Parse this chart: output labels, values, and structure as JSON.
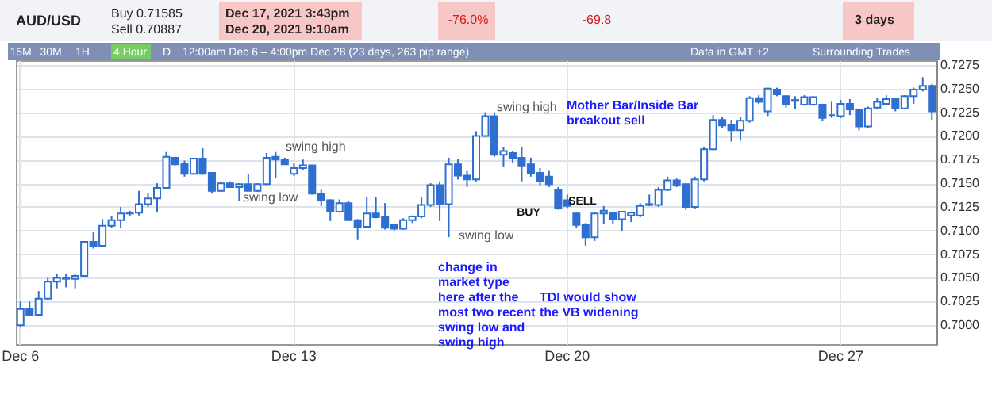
{
  "chart_data": {
    "type": "candlestick",
    "title": "AUD/USD",
    "categories": [
      "Dec 6",
      null,
      null,
      null,
      null,
      null,
      null,
      null,
      null,
      null,
      null,
      null,
      null,
      null,
      null,
      null,
      null,
      null,
      null,
      null,
      null,
      null,
      null,
      null,
      null,
      null,
      null,
      null,
      null,
      null,
      "Dec 13",
      null,
      null,
      null,
      null,
      null,
      null,
      null,
      null,
      null,
      null,
      null,
      null,
      null,
      null,
      null,
      null,
      null,
      null,
      null,
      null,
      null,
      null,
      null,
      null,
      null,
      null,
      null,
      null,
      null,
      "Dec 20",
      null,
      null,
      null,
      null,
      null,
      null,
      null,
      null,
      null,
      null,
      null,
      null,
      null,
      null,
      null,
      null,
      null,
      null,
      null,
      null,
      null,
      null,
      null,
      null,
      null,
      null,
      null,
      null,
      null,
      "Dec 27",
      null,
      null,
      null,
      null,
      null,
      null,
      null,
      null,
      null,
      null
    ],
    "ohlc": [
      [
        0.7,
        0.7025,
        0.6998,
        0.7017
      ],
      [
        0.7017,
        0.7025,
        0.7011,
        0.7011
      ],
      [
        0.7011,
        0.7036,
        0.701,
        0.7028
      ],
      [
        0.7028,
        0.705,
        0.7027,
        0.7046
      ],
      [
        0.7046,
        0.7054,
        0.7039,
        0.705
      ],
      [
        0.705,
        0.7054,
        0.704,
        0.7049
      ],
      [
        0.7049,
        0.7054,
        0.7039,
        0.7052
      ],
      [
        0.7052,
        0.7089,
        0.7051,
        0.7088
      ],
      [
        0.7088,
        0.7098,
        0.7081,
        0.7084
      ],
      [
        0.7084,
        0.7112,
        0.7083,
        0.7105
      ],
      [
        0.7105,
        0.7115,
        0.7103,
        0.7111
      ],
      [
        0.7111,
        0.7125,
        0.7103,
        0.7118
      ],
      [
        0.7118,
        0.7121,
        0.7115,
        0.7119
      ],
      [
        0.7119,
        0.7142,
        0.7116,
        0.7128
      ],
      [
        0.7128,
        0.714,
        0.7125,
        0.7134
      ],
      [
        0.7134,
        0.715,
        0.7119,
        0.7145
      ],
      [
        0.7145,
        0.7183,
        0.7144,
        0.7178
      ],
      [
        0.7177,
        0.7178,
        0.7169,
        0.717
      ],
      [
        0.7171,
        0.7174,
        0.7157,
        0.716
      ],
      [
        0.716,
        0.7176,
        0.7159,
        0.7176
      ],
      [
        0.7176,
        0.7187,
        0.7159,
        0.716
      ],
      [
        0.7161,
        0.7161,
        0.7139,
        0.7142
      ],
      [
        0.7142,
        0.7152,
        0.7141,
        0.715
      ],
      [
        0.715,
        0.7152,
        0.7145,
        0.7146
      ],
      [
        0.7146,
        0.715,
        0.7131,
        0.7149
      ],
      [
        0.7149,
        0.716,
        0.7142,
        0.7142
      ],
      [
        0.7142,
        0.715,
        0.7141,
        0.7149
      ],
      [
        0.7149,
        0.7182,
        0.7148,
        0.7177
      ],
      [
        0.7178,
        0.7183,
        0.7156,
        0.7175
      ],
      [
        0.7175,
        0.7177,
        0.717,
        0.717
      ],
      [
        0.716,
        0.7171,
        0.7158,
        0.7166
      ],
      [
        0.7166,
        0.7175,
        0.7164,
        0.7169
      ],
      [
        0.7169,
        0.7169,
        0.7138,
        0.7139
      ],
      [
        0.7139,
        0.7143,
        0.7126,
        0.7132
      ],
      [
        0.7132,
        0.7133,
        0.711,
        0.712
      ],
      [
        0.712,
        0.7133,
        0.7119,
        0.7129
      ],
      [
        0.7129,
        0.7131,
        0.711,
        0.7111
      ],
      [
        0.7111,
        0.7112,
        0.709,
        0.7104
      ],
      [
        0.7104,
        0.7135,
        0.7103,
        0.7118
      ],
      [
        0.7118,
        0.7135,
        0.7113,
        0.7114
      ],
      [
        0.7114,
        0.7129,
        0.7101,
        0.7103
      ],
      [
        0.7106,
        0.7107,
        0.71,
        0.7102
      ],
      [
        0.7102,
        0.7113,
        0.7101,
        0.7111
      ],
      [
        0.7111,
        0.7116,
        0.7108,
        0.7115
      ],
      [
        0.7115,
        0.7135,
        0.7113,
        0.7127
      ],
      [
        0.7127,
        0.715,
        0.7125,
        0.7148
      ],
      [
        0.7148,
        0.7152,
        0.711,
        0.7128
      ],
      [
        0.7128,
        0.7177,
        0.7093,
        0.717
      ],
      [
        0.717,
        0.7176,
        0.7154,
        0.7158
      ],
      [
        0.7158,
        0.7163,
        0.7146,
        0.7154
      ],
      [
        0.7154,
        0.7205,
        0.7152,
        0.72
      ],
      [
        0.72,
        0.7225,
        0.7199,
        0.7221
      ],
      [
        0.7221,
        0.7225,
        0.7178,
        0.718
      ],
      [
        0.718,
        0.7188,
        0.7167,
        0.7184
      ],
      [
        0.7182,
        0.7184,
        0.7172,
        0.7177
      ],
      [
        0.7177,
        0.7188,
        0.7152,
        0.7168
      ],
      [
        0.717,
        0.7177,
        0.7157,
        0.7161
      ],
      [
        0.7161,
        0.7166,
        0.7148,
        0.7152
      ],
      [
        0.7157,
        0.7163,
        0.7146,
        0.7149
      ],
      [
        0.7143,
        0.7146,
        0.7122,
        0.7124
      ],
      [
        0.7132,
        0.7138,
        0.7124,
        0.7126
      ],
      [
        0.7118,
        0.7119,
        0.7103,
        0.7106
      ],
      [
        0.7106,
        0.7108,
        0.7084,
        0.7093
      ],
      [
        0.7093,
        0.712,
        0.7089,
        0.7118
      ],
      [
        0.7118,
        0.7126,
        0.7107,
        0.7121
      ],
      [
        0.7119,
        0.712,
        0.7107,
        0.7112
      ],
      [
        0.7112,
        0.712,
        0.7099,
        0.712
      ],
      [
        0.7116,
        0.712,
        0.7109,
        0.7119
      ],
      [
        0.7116,
        0.7129,
        0.7114,
        0.7126
      ],
      [
        0.7127,
        0.7138,
        0.7126,
        0.7128
      ],
      [
        0.7127,
        0.7146,
        0.7125,
        0.7143
      ],
      [
        0.7143,
        0.7157,
        0.7142,
        0.7153
      ],
      [
        0.7153,
        0.7155,
        0.7146,
        0.7148
      ],
      [
        0.7149,
        0.715,
        0.7122,
        0.7125
      ],
      [
        0.7125,
        0.7157,
        0.7123,
        0.7154
      ],
      [
        0.7154,
        0.7188,
        0.7152,
        0.7186
      ],
      [
        0.7186,
        0.7222,
        0.7185,
        0.7217
      ],
      [
        0.7217,
        0.722,
        0.7208,
        0.7211
      ],
      [
        0.7212,
        0.7217,
        0.7194,
        0.7206
      ],
      [
        0.7206,
        0.722,
        0.7195,
        0.7216
      ],
      [
        0.7216,
        0.7242,
        0.7214,
        0.724
      ],
      [
        0.724,
        0.7243,
        0.7234,
        0.7236
      ],
      [
        0.7226,
        0.7251,
        0.7221,
        0.725
      ],
      [
        0.7249,
        0.7251,
        0.7242,
        0.7244
      ],
      [
        0.7242,
        0.7243,
        0.723,
        0.7233
      ],
      [
        0.7238,
        0.7242,
        0.7228,
        0.7237
      ],
      [
        0.7233,
        0.7243,
        0.7232,
        0.7241
      ],
      [
        0.7233,
        0.7242,
        0.7232,
        0.7241
      ],
      [
        0.7233,
        0.7234,
        0.7216,
        0.7219
      ],
      [
        0.7222,
        0.7236,
        0.7219,
        0.7222
      ],
      [
        0.7221,
        0.7238,
        0.7219,
        0.7234
      ],
      [
        0.7234,
        0.7239,
        0.7222,
        0.7228
      ],
      [
        0.7228,
        0.7229,
        0.7206,
        0.721
      ],
      [
        0.721,
        0.7231,
        0.7208,
        0.7229
      ],
      [
        0.723,
        0.724,
        0.7228,
        0.7236
      ],
      [
        0.7234,
        0.7243,
        0.7233,
        0.7239
      ],
      [
        0.7239,
        0.724,
        0.7226,
        0.7229
      ],
      [
        0.7229,
        0.7243,
        0.7228,
        0.7242
      ],
      [
        0.7242,
        0.7251,
        0.7234,
        0.7249
      ],
      [
        0.7249,
        0.7262,
        0.7247,
        0.7253
      ],
      [
        0.7253,
        0.7255,
        0.7217,
        0.7226
      ]
    ],
    "color": "#2e6fd0",
    "ylim": [
      0.698,
      0.728
    ],
    "yticks": [
      {
        "value": 0.7,
        "label": "0.7000"
      },
      0.7025,
      {
        "value": 0.705,
        "label": "0.7050"
      },
      0.7075,
      {
        "value": 0.71,
        "label": "0.7100"
      },
      0.7125,
      {
        "value": 0.715,
        "label": "0.7150"
      },
      0.7175,
      {
        "value": 0.72,
        "label": "0.7200"
      },
      0.7225,
      {
        "value": 0.725,
        "label": "0.7250"
      },
      0.7275
    ],
    "grid": true,
    "annotations": [
      "swing high",
      "swing low",
      "swing high",
      "swing low",
      "Mother Bar/Inside Bar breakout sell",
      "BUY",
      "SELL",
      "change in market type here after the most two recent swing low and swing high",
      "TDI would show the VB widening",
      "Buy 0.71585",
      "Sell 0.70887",
      "Dec 17, 2021 3:43pm",
      "Dec 20, 2021 9:10am",
      "-76.0%",
      "-69.8",
      "3 days",
      "15M",
      "30M",
      "1H",
      "4 Hour",
      "D",
      "12:00am Dec 6 – 4:00pm Dec 28 (23 days, 263 pip range)",
      "Data in GMT +2",
      "Surrounding Trades"
    ]
  }
}
